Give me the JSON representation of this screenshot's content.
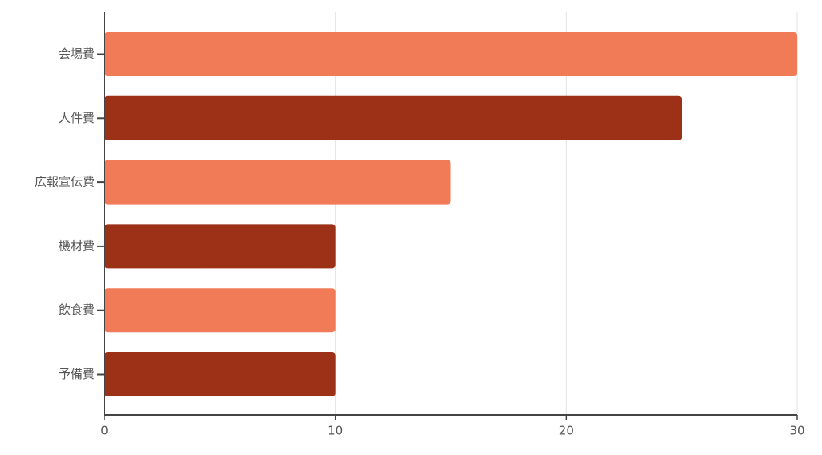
{
  "chart_data": {
    "type": "barh",
    "categories": [
      "会場費",
      "人件費",
      "広報宣伝費",
      "機材費",
      "飲食費",
      "予備費"
    ],
    "values": [
      30,
      25,
      15,
      10,
      10,
      10
    ],
    "colors": [
      "#f07b56",
      "#9c3118",
      "#f07b56",
      "#9c3118",
      "#f07b56",
      "#9c3118"
    ],
    "xlim": [
      0,
      30
    ],
    "xticks": [
      0,
      10,
      20,
      30
    ],
    "grid": true
  }
}
